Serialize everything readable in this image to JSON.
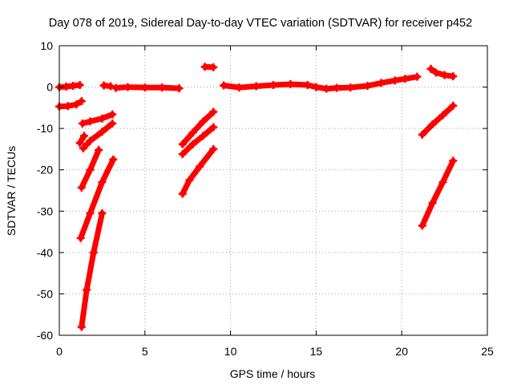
{
  "chart_data": {
    "type": "scatter",
    "title": "Day 078 of 2019, Sidereal Day-to-day VTEC variation (SDTVAR) for receiver p452",
    "xlabel": "GPS time / hours",
    "ylabel": "SDTVAR / TECUs",
    "xlim": [
      0,
      25
    ],
    "ylim": [
      -60,
      10
    ],
    "x_ticks": [
      0,
      5,
      10,
      15,
      20,
      25
    ],
    "y_ticks": [
      -60,
      -50,
      -40,
      -30,
      -20,
      -10,
      0,
      10
    ],
    "x_tick_labels": [
      "0",
      "5",
      "10",
      "15",
      "20",
      "25"
    ],
    "y_tick_labels": [
      "-60",
      "-50",
      "-40",
      "-30",
      "-20",
      "-10",
      "0",
      "10"
    ],
    "grid": true,
    "legend": "none",
    "series_color": "#ff0000",
    "marker": "plus",
    "series": [
      {
        "x": [
          0.0,
          0.4,
          0.8,
          1.2
        ],
        "y": [
          0.0,
          0.1,
          0.3,
          0.5
        ]
      },
      {
        "x": [
          0.0,
          0.5,
          1.0,
          1.3
        ],
        "y": [
          -4.7,
          -4.6,
          -4.2,
          -3.4
        ]
      },
      {
        "x": [
          1.35,
          1.8,
          2.5,
          3.1
        ],
        "y": [
          -8.8,
          -8.3,
          -7.6,
          -6.6
        ]
      },
      {
        "x": [
          1.2,
          1.45
        ],
        "y": [
          -13.5,
          -11.8
        ]
      },
      {
        "x": [
          1.4,
          1.8,
          2.5,
          3.1
        ],
        "y": [
          -14.8,
          -13.0,
          -10.8,
          -8.8
        ]
      },
      {
        "x": [
          1.3,
          1.8,
          2.3
        ],
        "y": [
          -24.3,
          -20.0,
          -15.2
        ]
      },
      {
        "x": [
          1.25,
          1.8,
          2.5,
          3.15
        ],
        "y": [
          -36.5,
          -30.5,
          -23.0,
          -17.5
        ]
      },
      {
        "x": [
          1.3,
          1.6,
          2.0,
          2.5
        ],
        "y": [
          -58.0,
          -49.0,
          -40.0,
          -30.5
        ]
      },
      {
        "x": [
          2.6,
          3.0
        ],
        "y": [
          0.4,
          0.2
        ]
      },
      {
        "x": [
          3.3,
          4.0,
          5.0,
          6.0,
          7.0
        ],
        "y": [
          -0.2,
          0.0,
          -0.1,
          -0.1,
          -0.3
        ]
      },
      {
        "x": [
          7.2,
          7.8,
          8.4,
          9.0
        ],
        "y": [
          -13.8,
          -11.0,
          -8.3,
          -6.0
        ]
      },
      {
        "x": [
          7.2,
          7.8,
          8.4,
          9.0
        ],
        "y": [
          -16.2,
          -13.8,
          -11.8,
          -9.7
        ]
      },
      {
        "x": [
          7.2,
          7.6,
          8.2,
          9.0
        ],
        "y": [
          -25.8,
          -22.5,
          -19.2,
          -15.0
        ]
      },
      {
        "x": [
          8.5,
          9.0
        ],
        "y": [
          4.9,
          4.8
        ]
      },
      {
        "x": [
          9.6,
          10.5,
          11.5,
          12.5,
          13.5,
          14.5,
          15.0,
          15.6,
          16.2,
          17.0,
          18.0,
          18.8,
          19.6,
          20.2,
          20.9
        ],
        "y": [
          0.4,
          -0.1,
          0.2,
          0.5,
          0.7,
          0.5,
          0.0,
          -0.4,
          -0.2,
          -0.1,
          0.3,
          1.0,
          1.6,
          2.0,
          2.5
        ]
      },
      {
        "x": [
          21.7,
          22.0,
          22.5,
          23.0
        ],
        "y": [
          4.4,
          3.5,
          2.9,
          2.6
        ]
      },
      {
        "x": [
          21.2,
          21.8,
          22.4,
          23.0
        ],
        "y": [
          -11.5,
          -9.0,
          -6.8,
          -4.5
        ]
      },
      {
        "x": [
          21.2,
          21.8,
          22.4,
          23.0
        ],
        "y": [
          -33.5,
          -28.0,
          -23.0,
          -17.8
        ]
      }
    ]
  }
}
